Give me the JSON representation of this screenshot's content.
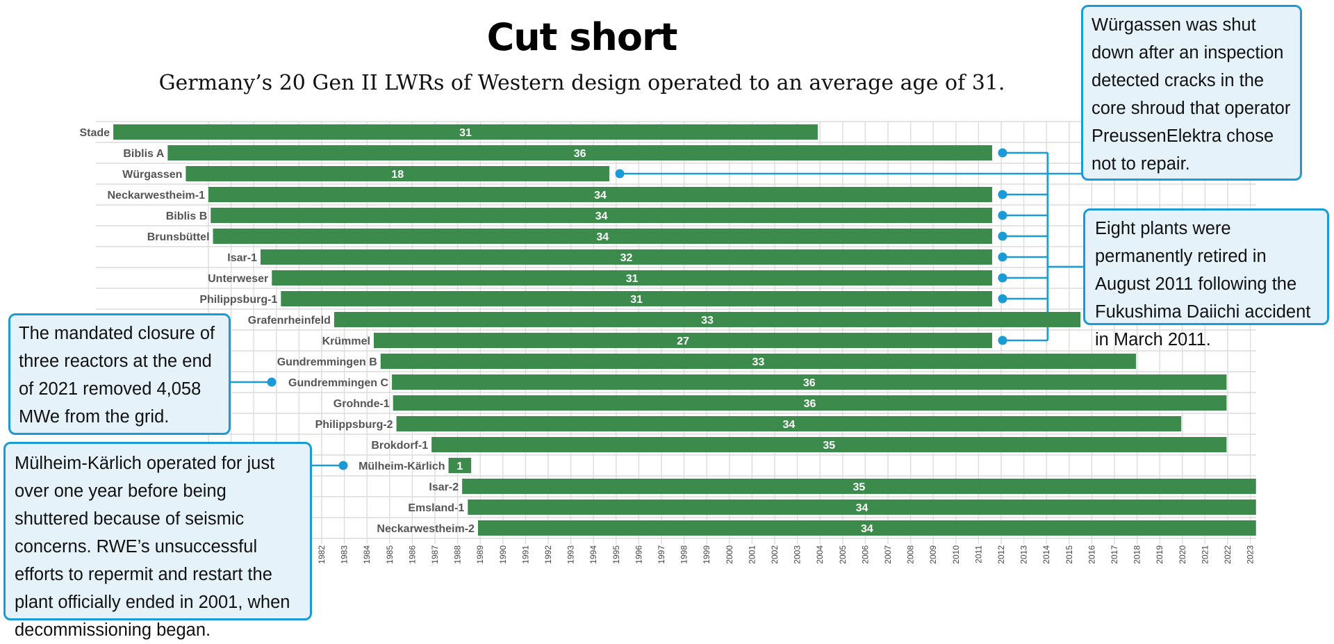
{
  "header": {
    "title": "Cut short",
    "subtitle": "Germany’s 20 Gen II LWRs of Western design operated to an average age of 31."
  },
  "chart_data": {
    "type": "bar",
    "orientation": "horizontal",
    "title": "Cut short",
    "subtitle": "Germany’s 20 Gen II LWRs of Western design operated to an average age of 31.",
    "xlim": [
      1977,
      2024
    ],
    "grid": true,
    "bar_color": "#3d8b4c",
    "x_ticks": [
      1982,
      1983,
      1984,
      1985,
      1986,
      1987,
      1988,
      1989,
      1990,
      1991,
      1992,
      1993,
      1994,
      1995,
      1996,
      1997,
      1998,
      1999,
      2000,
      2001,
      2002,
      2003,
      2004,
      2005,
      2006,
      2007,
      2008,
      2009,
      2010,
      2011,
      2012,
      2013,
      2014,
      2015,
      2016,
      2017,
      2018,
      2019,
      2020,
      2021,
      2022,
      2023
    ],
    "x_tick_labels": [
      "1982",
      "1983",
      "1984",
      "1985",
      "1986",
      "1987",
      "1988",
      "1989",
      "1990",
      "1991",
      "1992",
      "1993",
      "1994",
      "1995",
      "1996",
      "1997",
      "1998",
      "1999",
      "2000",
      "2001",
      "2002",
      "2003",
      "2004",
      "2005",
      "2006",
      "2007",
      "2008",
      "2009",
      "2010",
      "2011",
      "2012",
      "2013",
      "2014",
      "2015",
      "2016",
      "2017",
      "2018",
      "2019",
      "2020",
      "2021",
      "2022",
      "2023"
    ],
    "bars": [
      {
        "name": "Stade",
        "start": 1972.8,
        "end": 2003.9,
        "label": "31"
      },
      {
        "name": "Biblis A",
        "start": 1975.2,
        "end": 2011.6,
        "label": "36"
      },
      {
        "name": "Würgassen",
        "start": 1976.0,
        "end": 1994.7,
        "label": "18"
      },
      {
        "name": "Neckarwestheim-1",
        "start": 1977.0,
        "end": 2011.6,
        "label": "34"
      },
      {
        "name": "Biblis B",
        "start": 1977.1,
        "end": 2011.6,
        "label": "34"
      },
      {
        "name": "Brunsbüttel",
        "start": 1977.2,
        "end": 2011.6,
        "label": "34"
      },
      {
        "name": "Isar-1",
        "start": 1979.3,
        "end": 2011.6,
        "label": "32"
      },
      {
        "name": "Unterweser",
        "start": 1979.8,
        "end": 2011.6,
        "label": "31"
      },
      {
        "name": "Philippsburg-1",
        "start": 1980.2,
        "end": 2011.6,
        "label": "31"
      },
      {
        "name": "Grafenrheinfeld",
        "start": 1982.55,
        "end": 2015.5,
        "label": "33"
      },
      {
        "name": "Krümmel",
        "start": 1984.3,
        "end": 2011.6,
        "label": "27"
      },
      {
        "name": "Gundremmingen B",
        "start": 1984.6,
        "end": 2017.95,
        "label": "33"
      },
      {
        "name": "Gundremmingen C",
        "start": 1985.1,
        "end": 2021.95,
        "label": "36"
      },
      {
        "name": "Grohnde-1",
        "start": 1985.15,
        "end": 2021.95,
        "label": "36"
      },
      {
        "name": "Philippsburg-2",
        "start": 1985.3,
        "end": 2019.95,
        "label": "34"
      },
      {
        "name": "Brokdorf-1",
        "start": 1986.85,
        "end": 2021.95,
        "label": "35"
      },
      {
        "name": "Mülheim-Kärlich",
        "start": 1987.6,
        "end": 1988.6,
        "label": "1"
      },
      {
        "name": "Isar-2",
        "start": 1988.2,
        "end": 2023.25,
        "label": "35"
      },
      {
        "name": "Emsland-1",
        "start": 1988.45,
        "end": 2023.25,
        "label": "34"
      },
      {
        "name": "Neckarwestheim-2",
        "start": 1988.9,
        "end": 2023.25,
        "label": "34"
      }
    ],
    "annotations": [
      {
        "id": "wurgassen",
        "text": "Würgassen was shut down after an inspection detected cracks in the core shroud that operator PreussenElektra chose not to repair.",
        "targets": [
          2
        ]
      },
      {
        "id": "eight",
        "text": "Eight plants were permanently retired in August 2011 following the Fukushima Daiichi accident in March 2011.",
        "targets": [
          1,
          3,
          4,
          5,
          6,
          7,
          8,
          10
        ]
      },
      {
        "id": "mandated",
        "text": "The mandated closure of three reactors at the end of 2021 removed 4,058 MWe from the grid.",
        "targets": [
          12
        ]
      },
      {
        "id": "mulheim",
        "text": "Mülheim-Kärlich operated for just over one year before being shuttered because of seismic concerns. RWE’s unsuccessful efforts to repermit and restart the plant officially ended in 2001, when decommissioning began.",
        "targets": [
          16
        ]
      }
    ],
    "accent_color": "#1a9ad6",
    "callout_bg": "#e6f2fa"
  }
}
